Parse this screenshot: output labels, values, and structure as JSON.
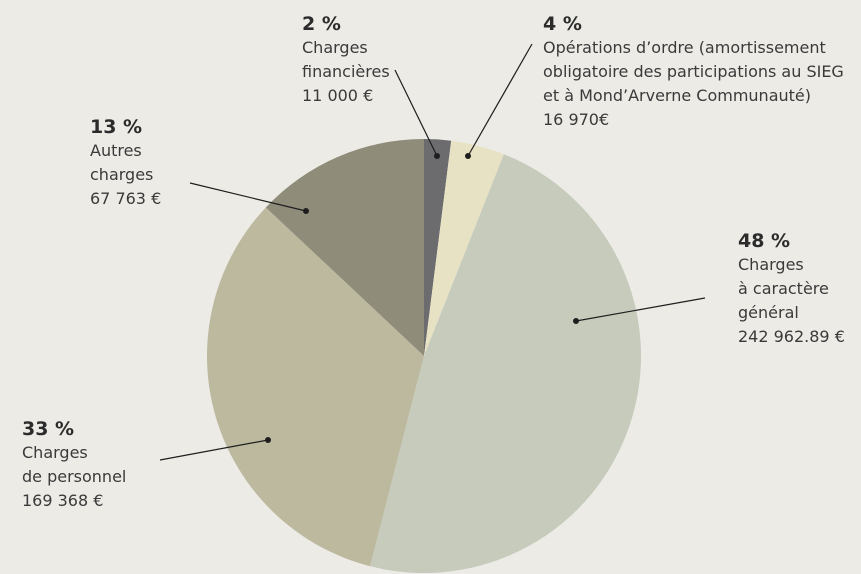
{
  "chart_data": {
    "type": "pie",
    "categories": [
      "Charges\nfinancières",
      "Opérations d’ordre (amortissement\nobligatoire des participations au SIEG\net à Mond’Arverne Communauté)",
      "Charges\nà caractère\ngénéral",
      "Charges\nde personnel",
      "Autres\ncharges"
    ],
    "values": [
      2,
      4,
      48,
      33,
      13
    ],
    "value_labels": [
      "2 %",
      "4 %",
      "48 %",
      "33 %",
      "13 %"
    ],
    "amounts": [
      11000,
      16970,
      242962.89,
      169368,
      67763
    ],
    "amount_labels": [
      "11 000 €",
      "16 970€",
      "242 962.89 €",
      "169 368 €",
      "67 763 €"
    ],
    "colors": [
      "#6c6c6e",
      "#e8e2c4",
      "#c6cbbc",
      "#bcb99f",
      "#8f8c7a"
    ]
  }
}
